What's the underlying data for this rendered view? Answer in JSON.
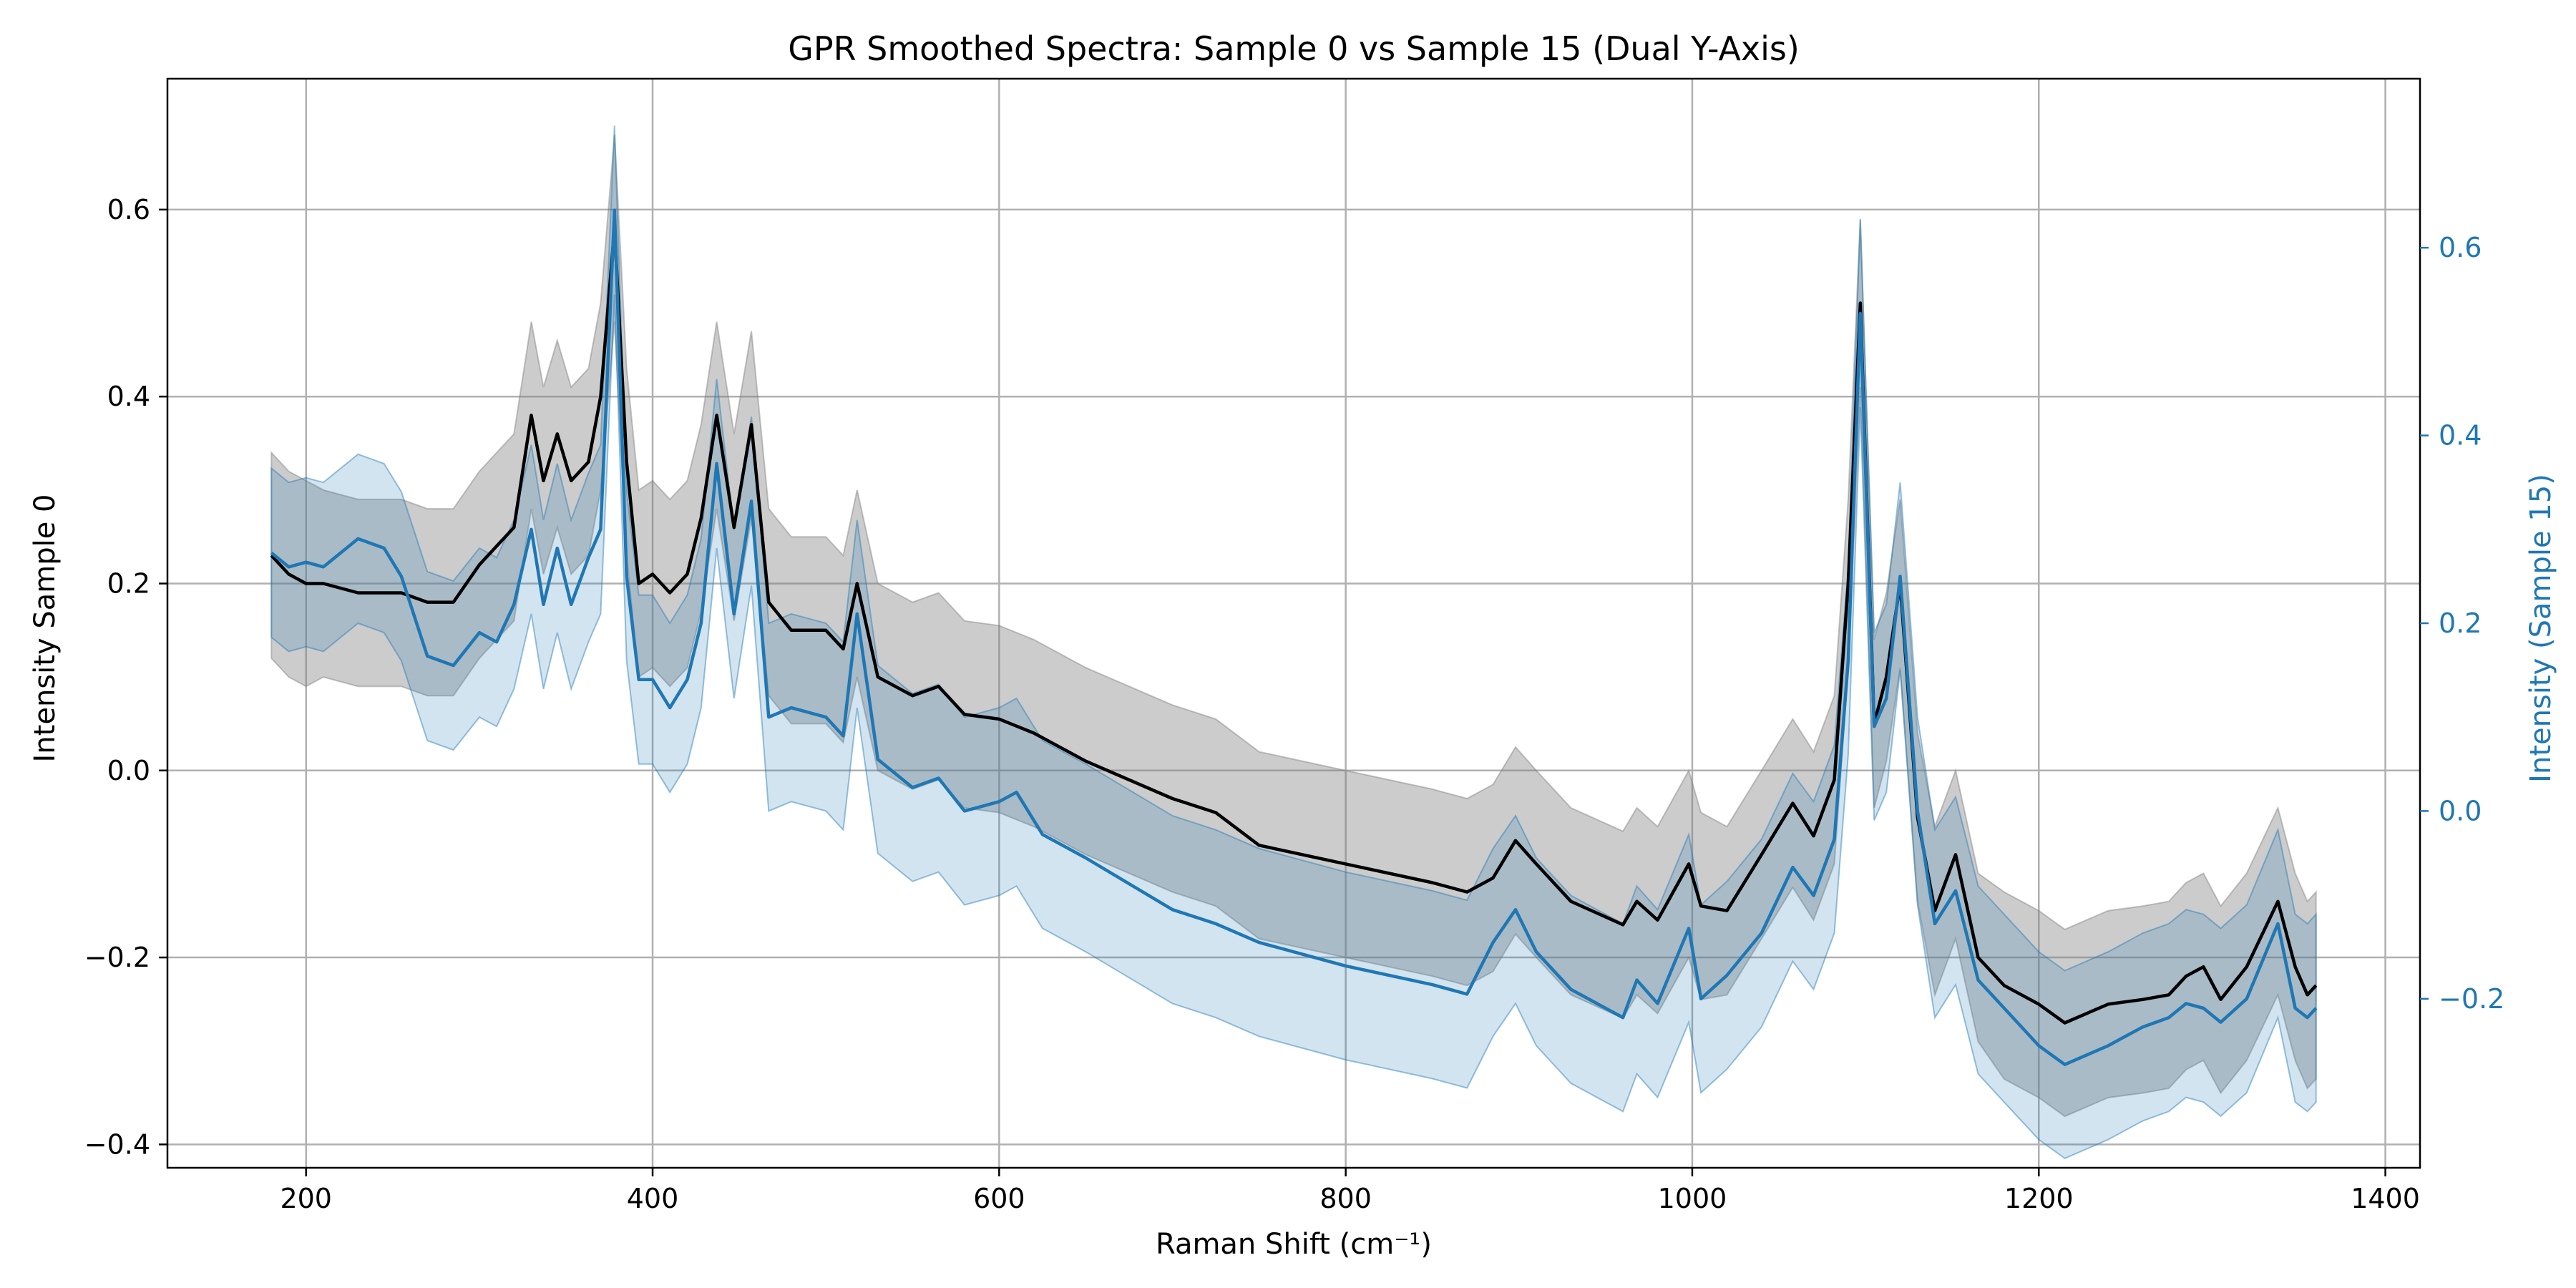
{
  "chart_data": {
    "type": "line",
    "title": "GPR Smoothed Spectra: Sample 0 vs Sample 15 (Dual Y-Axis)",
    "xlabel": "Raman Shift (cm⁻¹)",
    "ylabel_left": "Intensity Sample 0",
    "ylabel_right": "Intensity (Sample 15)",
    "xlim": [
      120,
      1420
    ],
    "ylim_left": [
      -0.425,
      0.74
    ],
    "ylim_right": [
      -0.38,
      0.78
    ],
    "xticks": [
      200,
      400,
      600,
      800,
      1000,
      1200,
      1400
    ],
    "xtick_labels": [
      "200",
      "400",
      "600",
      "800",
      "1000",
      "1200",
      "1400"
    ],
    "yticks_left": [
      -0.4,
      -0.2,
      0.0,
      0.2,
      0.4,
      0.6
    ],
    "ytick_labels_left": [
      "−0.4",
      "−0.2",
      "0.0",
      "0.2",
      "0.4",
      "0.6"
    ],
    "yticks_right": [
      -0.2,
      0.0,
      0.2,
      0.4,
      0.6
    ],
    "ytick_labels_right": [
      "−0.2",
      "0.0",
      "0.2",
      "0.4",
      "0.6"
    ],
    "grid": true,
    "series": [
      {
        "axis": "left",
        "color": "#000000",
        "band_color": "#7f7f7f",
        "x": [
          180,
          190,
          200,
          210,
          230,
          255,
          270,
          285,
          300,
          310,
          320,
          330,
          337,
          345,
          353,
          363,
          370,
          378,
          385,
          392,
          400,
          410,
          420,
          428,
          437,
          447,
          457,
          467,
          480,
          500,
          510,
          518,
          530,
          550,
          565,
          580,
          600,
          620,
          650,
          700,
          725,
          750,
          800,
          850,
          870,
          885,
          898,
          910,
          930,
          960,
          968,
          980,
          998,
          1005,
          1020,
          1040,
          1058,
          1070,
          1082,
          1090,
          1097,
          1105,
          1112,
          1120,
          1130,
          1140,
          1152,
          1165,
          1180,
          1200,
          1215,
          1240,
          1260,
          1275,
          1285,
          1295,
          1305,
          1320,
          1338,
          1348,
          1355,
          1360
        ],
        "y": [
          0.23,
          0.21,
          0.2,
          0.2,
          0.19,
          0.19,
          0.18,
          0.18,
          0.22,
          0.24,
          0.26,
          0.38,
          0.31,
          0.36,
          0.31,
          0.33,
          0.4,
          0.58,
          0.33,
          0.2,
          0.21,
          0.19,
          0.21,
          0.27,
          0.38,
          0.26,
          0.37,
          0.18,
          0.15,
          0.15,
          0.13,
          0.2,
          0.1,
          0.08,
          0.09,
          0.06,
          0.055,
          0.04,
          0.01,
          -0.03,
          -0.045,
          -0.08,
          -0.1,
          -0.12,
          -0.13,
          -0.115,
          -0.075,
          -0.1,
          -0.14,
          -0.165,
          -0.14,
          -0.16,
          -0.1,
          -0.145,
          -0.15,
          -0.09,
          -0.035,
          -0.07,
          -0.01,
          0.2,
          0.5,
          0.05,
          0.1,
          0.2,
          -0.05,
          -0.15,
          -0.09,
          -0.2,
          -0.23,
          -0.25,
          -0.27,
          -0.25,
          -0.245,
          -0.24,
          -0.22,
          -0.21,
          -0.245,
          -0.21,
          -0.14,
          -0.21,
          -0.24,
          -0.23
        ],
        "band": [
          0.11,
          0.11,
          0.11,
          0.1,
          0.1,
          0.1,
          0.1,
          0.1,
          0.1,
          0.1,
          0.1,
          0.1,
          0.1,
          0.1,
          0.1,
          0.1,
          0.1,
          0.1,
          0.1,
          0.1,
          0.1,
          0.1,
          0.1,
          0.1,
          0.1,
          0.1,
          0.1,
          0.1,
          0.1,
          0.1,
          0.1,
          0.1,
          0.1,
          0.1,
          0.1,
          0.1,
          0.1,
          0.1,
          0.1,
          0.1,
          0.1,
          0.1,
          0.1,
          0.1,
          0.1,
          0.1,
          0.1,
          0.1,
          0.1,
          0.1,
          0.1,
          0.1,
          0.1,
          0.1,
          0.09,
          0.09,
          0.09,
          0.09,
          0.09,
          0.09,
          0.09,
          0.09,
          0.09,
          0.09,
          0.09,
          0.09,
          0.09,
          0.09,
          0.1,
          0.1,
          0.1,
          0.1,
          0.1,
          0.1,
          0.1,
          0.1,
          0.1,
          0.1,
          0.1,
          0.1,
          0.1,
          0.1
        ]
      },
      {
        "axis": "right",
        "color": "#1f77b4",
        "band_color": "#1f77b4",
        "x": [
          180,
          190,
          200,
          210,
          230,
          245,
          255,
          270,
          285,
          300,
          310,
          320,
          330,
          337,
          345,
          353,
          363,
          370,
          378,
          385,
          392,
          400,
          410,
          420,
          428,
          437,
          447,
          457,
          467,
          480,
          500,
          510,
          518,
          530,
          550,
          565,
          580,
          600,
          610,
          625,
          650,
          700,
          725,
          750,
          800,
          850,
          870,
          885,
          898,
          910,
          930,
          960,
          968,
          980,
          998,
          1005,
          1020,
          1040,
          1058,
          1070,
          1082,
          1090,
          1097,
          1105,
          1112,
          1120,
          1130,
          1140,
          1152,
          1165,
          1180,
          1200,
          1215,
          1240,
          1260,
          1275,
          1285,
          1295,
          1305,
          1320,
          1338,
          1348,
          1355,
          1360
        ],
        "y": [
          0.275,
          0.26,
          0.265,
          0.26,
          0.29,
          0.28,
          0.25,
          0.165,
          0.155,
          0.19,
          0.18,
          0.22,
          0.3,
          0.22,
          0.28,
          0.22,
          0.27,
          0.3,
          0.64,
          0.25,
          0.14,
          0.14,
          0.11,
          0.14,
          0.2,
          0.37,
          0.21,
          0.33,
          0.1,
          0.11,
          0.1,
          0.08,
          0.21,
          0.055,
          0.025,
          0.035,
          0.0,
          0.01,
          0.02,
          -0.025,
          -0.05,
          -0.105,
          -0.12,
          -0.14,
          -0.165,
          -0.185,
          -0.195,
          -0.14,
          -0.105,
          -0.15,
          -0.19,
          -0.22,
          -0.18,
          -0.205,
          -0.125,
          -0.2,
          -0.175,
          -0.13,
          -0.06,
          -0.09,
          -0.03,
          0.16,
          0.53,
          0.09,
          0.12,
          0.25,
          0.0,
          -0.12,
          -0.085,
          -0.18,
          -0.21,
          -0.25,
          -0.27,
          -0.25,
          -0.23,
          -0.22,
          -0.205,
          -0.21,
          -0.225,
          -0.2,
          -0.12,
          -0.21,
          -0.22,
          -0.21
        ],
        "band": [
          0.09,
          0.09,
          0.09,
          0.09,
          0.09,
          0.09,
          0.09,
          0.09,
          0.09,
          0.09,
          0.09,
          0.09,
          0.09,
          0.09,
          0.09,
          0.09,
          0.09,
          0.09,
          0.09,
          0.09,
          0.09,
          0.09,
          0.09,
          0.09,
          0.09,
          0.09,
          0.09,
          0.09,
          0.1,
          0.1,
          0.1,
          0.1,
          0.1,
          0.1,
          0.1,
          0.1,
          0.1,
          0.1,
          0.1,
          0.1,
          0.1,
          0.1,
          0.1,
          0.1,
          0.1,
          0.1,
          0.1,
          0.1,
          0.1,
          0.1,
          0.1,
          0.1,
          0.1,
          0.1,
          0.1,
          0.1,
          0.1,
          0.1,
          0.1,
          0.1,
          0.1,
          0.1,
          0.1,
          0.1,
          0.1,
          0.1,
          0.1,
          0.1,
          0.1,
          0.1,
          0.1,
          0.1,
          0.1,
          0.1,
          0.1,
          0.1,
          0.1,
          0.1,
          0.1,
          0.1,
          0.1,
          0.1,
          0.1,
          0.1
        ]
      }
    ]
  }
}
